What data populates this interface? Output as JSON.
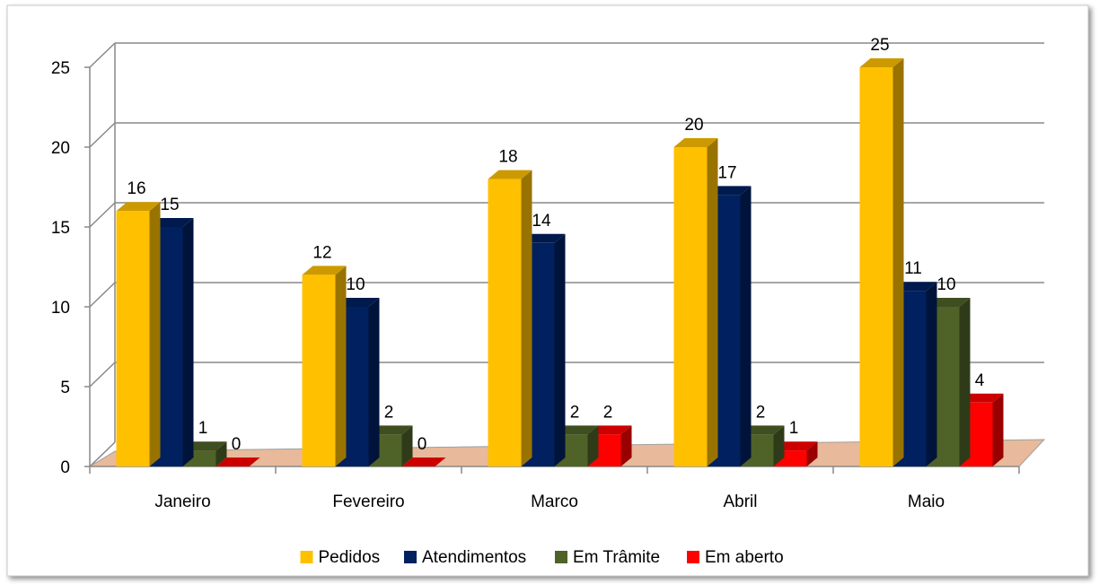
{
  "chart_data": {
    "type": "bar3d",
    "categories": [
      "Janeiro",
      "Fevereiro",
      "Marco",
      "Abril",
      "Maio"
    ],
    "series": [
      {
        "name": "Pedidos",
        "color": "#FFC000",
        "values": [
          16,
          12,
          18,
          20,
          25
        ]
      },
      {
        "name": "Atendimentos",
        "color": "#002060",
        "values": [
          15,
          10,
          14,
          17,
          11
        ]
      },
      {
        "name": "Em Trâmite",
        "color": "#4F6228",
        "values": [
          1,
          2,
          2,
          2,
          10
        ]
      },
      {
        "name": "Em aberto",
        "color": "#FF0000",
        "values": [
          0,
          0,
          2,
          1,
          4
        ]
      }
    ],
    "ylim": [
      0,
      25
    ],
    "yticks": [
      0,
      5,
      10,
      15,
      20,
      25
    ],
    "grid": true,
    "legend": "bottom"
  }
}
